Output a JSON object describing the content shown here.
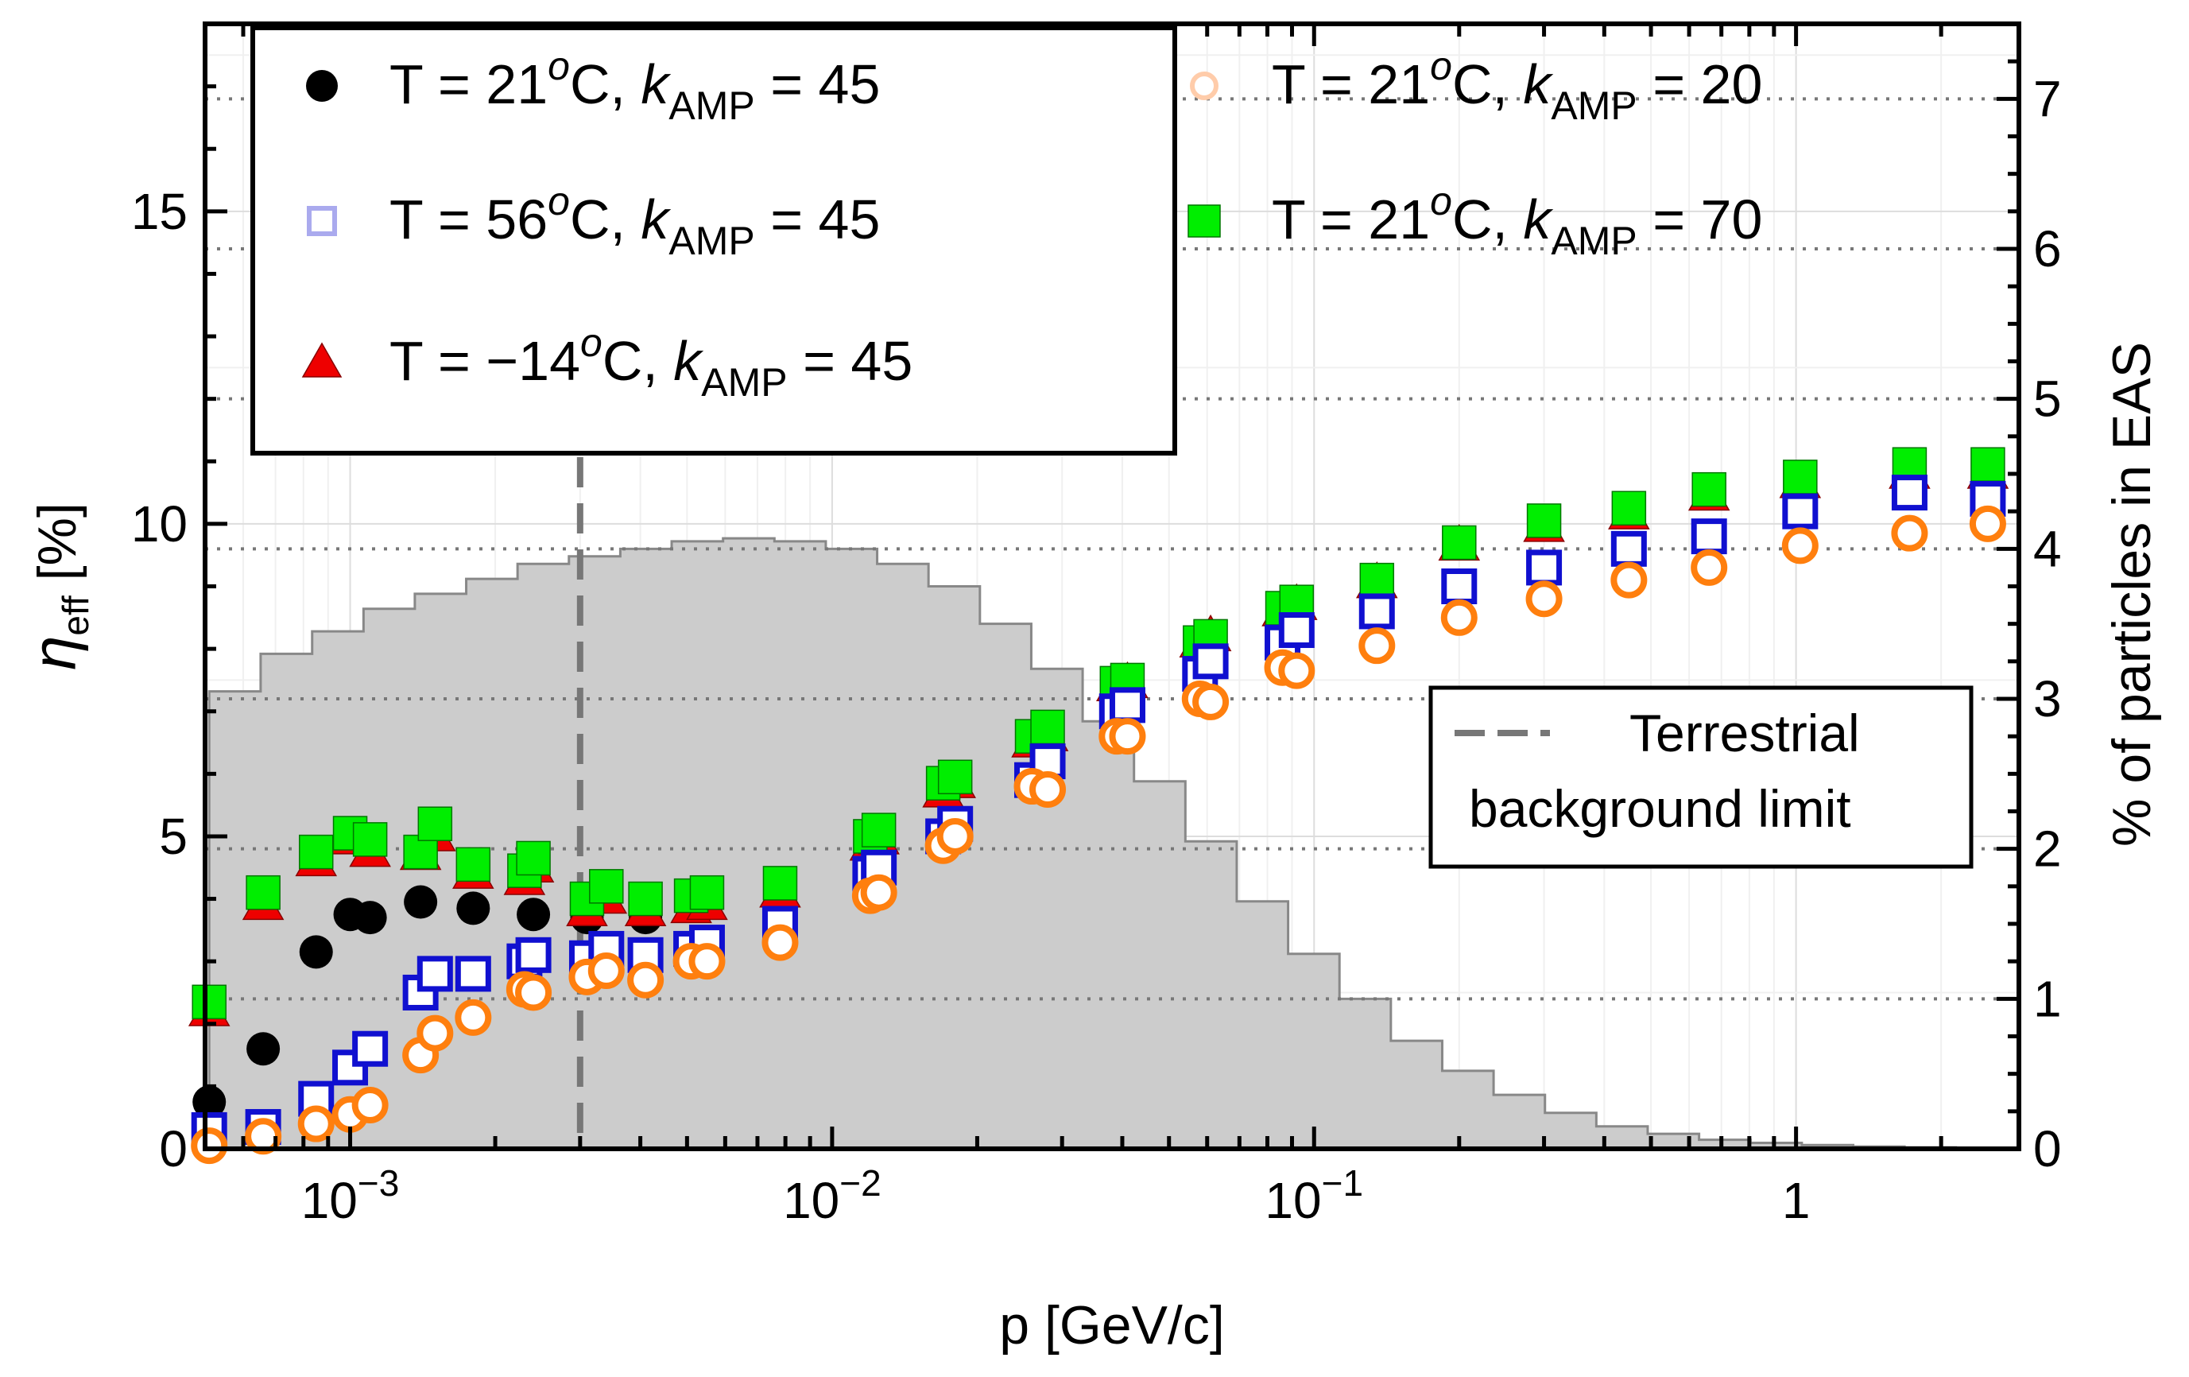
{
  "chart_data": {
    "type": "scatter",
    "x_scale": "log",
    "xlabel": "p [GeV/c]",
    "ylabel_base": "η",
    "ylabel_sub": "eff",
    "ylabel_unit": "[%]",
    "y2label": "% of particles in EAS",
    "xlim": [
      0.0005,
      2.9
    ],
    "ylim": [
      0,
      18
    ],
    "y2lim": [
      0,
      7.5
    ],
    "x_ticks": [
      {
        "value": 0.001,
        "base": "10",
        "exp": "−3"
      },
      {
        "value": 0.01,
        "base": "10",
        "exp": "−2"
      },
      {
        "value": 0.1,
        "base": "10",
        "exp": "−1"
      },
      {
        "value": 1,
        "base": "1",
        "exp": ""
      }
    ],
    "y_ticks": [
      {
        "value": 0,
        "label": "0"
      },
      {
        "value": 5,
        "label": "5"
      },
      {
        "value": 10,
        "label": "10"
      },
      {
        "value": 15,
        "label": "15"
      }
    ],
    "y2_ticks": [
      {
        "value": 0,
        "label": "0"
      },
      {
        "value": 1,
        "label": "1"
      },
      {
        "value": 2,
        "label": "2"
      },
      {
        "value": 3,
        "label": "3"
      },
      {
        "value": 4,
        "label": "4"
      },
      {
        "value": 5,
        "label": "5"
      },
      {
        "value": 6,
        "label": "6"
      },
      {
        "value": 7,
        "label": "7"
      }
    ],
    "grid": true,
    "legend_position": "top",
    "colors": {
      "black": "#000000",
      "blue": "#1010d0",
      "red": "#ee0000",
      "green": "#00ee00",
      "orange": "#ff7f0e",
      "histogram_fill": "#cccccc",
      "histogram_edge": "#888888",
      "guide_line": "#777777"
    },
    "series": [
      {
        "legend": {
          "t": "T = 21",
          "sup": "o",
          "c": "C, ",
          "k": "k",
          "sub": "AMP",
          "val": " = 45"
        },
        "marker": "circle",
        "color": "#000000",
        "points": [
          [
            0.00051,
            0.75
          ],
          [
            0.00066,
            1.6
          ],
          [
            0.00085,
            3.15
          ],
          [
            0.001,
            3.75
          ],
          [
            0.0011,
            3.7
          ],
          [
            0.0014,
            3.95
          ],
          [
            0.0018,
            3.85
          ],
          [
            0.0024,
            3.75
          ],
          [
            0.0031,
            3.7
          ],
          [
            0.0041,
            3.7
          ]
        ]
      },
      {
        "legend": {
          "t": "T = 56",
          "sup": "o",
          "c": "C, ",
          "k": "k",
          "sub": "AMP",
          "val": " = 45"
        },
        "marker": "square-open",
        "color": "#1010d0",
        "points": [
          [
            0.00051,
            0.3
          ],
          [
            0.00066,
            0.35
          ],
          [
            0.00085,
            0.8
          ],
          [
            0.001,
            1.3
          ],
          [
            0.0011,
            1.6
          ],
          [
            0.0014,
            2.5
          ],
          [
            0.0015,
            2.8
          ],
          [
            0.0018,
            2.8
          ],
          [
            0.0023,
            3.0
          ],
          [
            0.0024,
            3.1
          ],
          [
            0.0031,
            3.05
          ],
          [
            0.0034,
            3.2
          ],
          [
            0.0041,
            3.1
          ],
          [
            0.0051,
            3.2
          ],
          [
            0.0055,
            3.3
          ],
          [
            0.0078,
            3.6
          ],
          [
            0.012,
            4.4
          ],
          [
            0.0125,
            4.5
          ],
          [
            0.017,
            5.0
          ],
          [
            0.018,
            5.2
          ],
          [
            0.026,
            5.9
          ],
          [
            0.028,
            6.2
          ],
          [
            0.039,
            7.0
          ],
          [
            0.041,
            7.1
          ],
          [
            0.058,
            7.6
          ],
          [
            0.061,
            7.8
          ],
          [
            0.086,
            8.1
          ],
          [
            0.092,
            8.3
          ],
          [
            0.135,
            8.6
          ],
          [
            0.2,
            9.0
          ],
          [
            0.3,
            9.3
          ],
          [
            0.45,
            9.6
          ],
          [
            0.66,
            9.8
          ],
          [
            1.02,
            10.2
          ],
          [
            1.72,
            10.5
          ],
          [
            2.5,
            10.4
          ]
        ]
      },
      {
        "legend": {
          "t": "T = −14",
          "sup": "o",
          "c": "C, ",
          "k": "k",
          "sub": "AMP",
          "val": " = 45"
        },
        "marker": "triangle",
        "color": "#ee0000",
        "points": [
          [
            0.00051,
            2.2
          ],
          [
            0.00066,
            3.9
          ],
          [
            0.00085,
            4.6
          ],
          [
            0.001,
            4.95
          ],
          [
            0.0011,
            4.75
          ],
          [
            0.0014,
            4.7
          ],
          [
            0.0015,
            5.0
          ],
          [
            0.0018,
            4.4
          ],
          [
            0.0023,
            4.3
          ],
          [
            0.0024,
            4.5
          ],
          [
            0.0031,
            3.8
          ],
          [
            0.0034,
            4.0
          ],
          [
            0.0041,
            3.8
          ],
          [
            0.0051,
            3.85
          ],
          [
            0.0055,
            3.9
          ],
          [
            0.0078,
            4.1
          ],
          [
            0.012,
            4.85
          ],
          [
            0.0125,
            4.95
          ],
          [
            0.017,
            5.7
          ],
          [
            0.018,
            5.85
          ],
          [
            0.026,
            6.5
          ],
          [
            0.028,
            6.6
          ],
          [
            0.039,
            7.4
          ],
          [
            0.041,
            7.45
          ],
          [
            0.058,
            8.1
          ],
          [
            0.061,
            8.2
          ],
          [
            0.086,
            8.6
          ],
          [
            0.092,
            8.7
          ],
          [
            0.135,
            9.05
          ],
          [
            0.2,
            9.65
          ],
          [
            0.3,
            9.95
          ],
          [
            0.45,
            10.15
          ],
          [
            0.66,
            10.45
          ],
          [
            1.02,
            10.65
          ],
          [
            1.72,
            10.8
          ],
          [
            2.5,
            10.8
          ]
        ]
      },
      {
        "legend": {
          "t": "T = 21",
          "sup": "o",
          "c": "C, ",
          "k": "k",
          "sub": "AMP",
          "val": " = 20"
        },
        "marker": "circle-open",
        "color": "#ff7f0e",
        "points": [
          [
            0.00051,
            0.05
          ],
          [
            0.00066,
            0.2
          ],
          [
            0.00085,
            0.4
          ],
          [
            0.001,
            0.55
          ],
          [
            0.0011,
            0.7
          ],
          [
            0.0014,
            1.5
          ],
          [
            0.0015,
            1.85
          ],
          [
            0.0018,
            2.1
          ],
          [
            0.0023,
            2.55
          ],
          [
            0.0024,
            2.5
          ],
          [
            0.0031,
            2.75
          ],
          [
            0.0034,
            2.85
          ],
          [
            0.0041,
            2.7
          ],
          [
            0.0051,
            3.0
          ],
          [
            0.0055,
            3.0
          ],
          [
            0.0078,
            3.3
          ],
          [
            0.012,
            4.05
          ],
          [
            0.0125,
            4.1
          ],
          [
            0.017,
            4.85
          ],
          [
            0.018,
            5.0
          ],
          [
            0.026,
            5.8
          ],
          [
            0.028,
            5.75
          ],
          [
            0.039,
            6.6
          ],
          [
            0.041,
            6.6
          ],
          [
            0.058,
            7.2
          ],
          [
            0.061,
            7.15
          ],
          [
            0.086,
            7.7
          ],
          [
            0.092,
            7.65
          ],
          [
            0.135,
            8.05
          ],
          [
            0.2,
            8.5
          ],
          [
            0.3,
            8.8
          ],
          [
            0.45,
            9.1
          ],
          [
            0.66,
            9.3
          ],
          [
            1.02,
            9.65
          ],
          [
            1.72,
            9.85
          ],
          [
            2.5,
            10.0
          ]
        ]
      },
      {
        "legend": {
          "t": "T = 21",
          "sup": "o",
          "c": "C, ",
          "k": "k",
          "sub": "AMP",
          "val": " = 70"
        },
        "marker": "square",
        "color": "#00ee00",
        "points": [
          [
            0.00051,
            2.35
          ],
          [
            0.00066,
            4.1
          ],
          [
            0.00085,
            4.75
          ],
          [
            0.001,
            5.05
          ],
          [
            0.0011,
            4.95
          ],
          [
            0.0014,
            4.75
          ],
          [
            0.0015,
            5.2
          ],
          [
            0.0018,
            4.55
          ],
          [
            0.0023,
            4.45
          ],
          [
            0.0024,
            4.65
          ],
          [
            0.0031,
            4.0
          ],
          [
            0.0034,
            4.2
          ],
          [
            0.0041,
            4.0
          ],
          [
            0.0051,
            4.05
          ],
          [
            0.0055,
            4.1
          ],
          [
            0.0078,
            4.25
          ],
          [
            0.012,
            5.0
          ],
          [
            0.0125,
            5.1
          ],
          [
            0.017,
            5.85
          ],
          [
            0.018,
            5.95
          ],
          [
            0.026,
            6.6
          ],
          [
            0.028,
            6.75
          ],
          [
            0.039,
            7.45
          ],
          [
            0.041,
            7.5
          ],
          [
            0.058,
            8.1
          ],
          [
            0.061,
            8.2
          ],
          [
            0.086,
            8.65
          ],
          [
            0.092,
            8.75
          ],
          [
            0.135,
            9.1
          ],
          [
            0.2,
            9.7
          ],
          [
            0.3,
            10.05
          ],
          [
            0.45,
            10.25
          ],
          [
            0.66,
            10.55
          ],
          [
            1.02,
            10.75
          ],
          [
            1.72,
            10.95
          ],
          [
            2.5,
            10.95
          ]
        ]
      }
    ],
    "histogram": {
      "axis": "right",
      "label": "% of particles in EAS",
      "edges": [
        0.00051,
        0.000652,
        0.000834,
        0.001066,
        0.001362,
        0.001741,
        0.002225,
        0.002844,
        0.003635,
        0.004646,
        0.005939,
        0.007591,
        0.009702,
        0.012401,
        0.01585,
        0.020259,
        0.025894,
        0.033097,
        0.042303,
        0.054069,
        0.069109,
        0.088332,
        0.112902,
        0.144306,
        0.184445,
        0.235749,
        0.301322,
        0.385135,
        0.492261,
        0.629185,
        0.804193,
        1.027881,
        1.313787,
        1.679219,
        2.146296,
        2.743293,
        2.9
      ],
      "values": [
        3.05,
        3.3,
        3.45,
        3.6,
        3.7,
        3.8,
        3.9,
        3.95,
        4.0,
        4.05,
        4.07,
        4.05,
        4.0,
        3.9,
        3.75,
        3.5,
        3.2,
        2.85,
        2.45,
        2.05,
        1.65,
        1.3,
        1.0,
        0.72,
        0.52,
        0.36,
        0.24,
        0.15,
        0.1,
        0.06,
        0.04,
        0.025,
        0.015,
        0.01,
        0.005,
        0.0
      ]
    },
    "guide_lines": [
      {
        "axis": "y2",
        "value": 4.0
      },
      {
        "axis": "y2",
        "value": 3.0
      },
      {
        "axis": "y2",
        "value": 2.0
      },
      {
        "axis": "y2",
        "value": 1.0
      },
      {
        "axis": "y2",
        "value": 5.0
      },
      {
        "axis": "y2",
        "value": 6.0
      },
      {
        "axis": "y2",
        "value": 7.0
      }
    ],
    "vertical_limit": {
      "value": 0.003
    },
    "annotation_legend": [
      "Terrestrial",
      "background limit"
    ]
  }
}
